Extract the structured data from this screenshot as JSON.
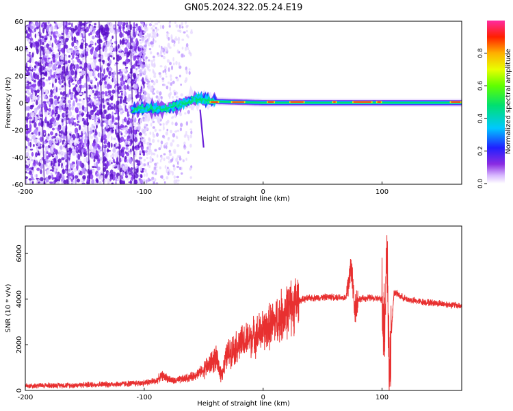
{
  "title": "GN05.2024.322.05.24.E19",
  "colors": {
    "snr_line": "#e83030",
    "spectrogram_noise": "#6a1fd8",
    "axis": "#000000",
    "background": "#ffffff"
  },
  "chart_data": [
    {
      "type": "heatmap",
      "title": "GN05.2024.322.05.24.E19",
      "xlabel": "Height of straight line (km)",
      "ylabel": "Frequency (Hz)",
      "xlim": [
        -200,
        167
      ],
      "ylim": [
        -60,
        60
      ],
      "x_ticks": [
        "-200",
        "-100",
        "0",
        "100"
      ],
      "y_ticks": [
        "-60",
        "-40",
        "-20",
        "0",
        "20",
        "40",
        "60"
      ],
      "colorbar": {
        "label": "Normalized spectral amplitude",
        "range": [
          0.0,
          1.0
        ],
        "ticks": [
          "0.0",
          "0.2",
          "0.4",
          "0.6",
          "0.8"
        ],
        "colormap": "rainbow (white → violet → blue → cyan → green → yellow → red → magenta)"
      },
      "features": {
        "noise_region_x": [
          -200,
          -100
        ],
        "noise_fade_x": [
          -100,
          -60
        ],
        "signal_band_x": [
          -110,
          167
        ],
        "signal_band_center_hz": [
          {
            "x": -110,
            "f": -5
          },
          {
            "x": -80,
            "f": -4
          },
          {
            "x": -55,
            "f": 3
          },
          {
            "x": -40,
            "f": 1
          },
          {
            "x": 0,
            "f": 0
          },
          {
            "x": 167,
            "f": 0
          }
        ],
        "streak": {
          "x": [
            -53,
            -50
          ],
          "f": [
            -5,
            -33
          ]
        }
      },
      "grid": false
    },
    {
      "type": "line",
      "xlabel": "Height of straight line (km)",
      "ylabel": "SNR (10 * v/v)",
      "xlim": [
        -200,
        167
      ],
      "ylim": [
        0,
        7200
      ],
      "x_ticks": [
        "-200",
        "-100",
        "0",
        "100"
      ],
      "y_ticks": [
        "0",
        "2000",
        "4000",
        "6000"
      ],
      "grid": false,
      "series": [
        {
          "x": [
            -200,
            -180,
            -160,
            -140,
            -120,
            -100,
            -90,
            -85,
            -75,
            -60,
            -50,
            -40,
            -35,
            -30,
            -25,
            -20,
            -10,
            0,
            10,
            20,
            30,
            40,
            50,
            60,
            70,
            74,
            77,
            80,
            90,
            100,
            102,
            104,
            106,
            110,
            120,
            130,
            140,
            150,
            167
          ],
          "values": [
            200,
            220,
            230,
            260,
            280,
            330,
            420,
            650,
            400,
            600,
            900,
            1400,
            700,
            1600,
            1800,
            2000,
            2300,
            2600,
            3000,
            3500,
            3950,
            4050,
            4080,
            4100,
            4050,
            5500,
            3600,
            4000,
            4050,
            4000,
            2800,
            6600,
            900,
            4300,
            4000,
            3900,
            3850,
            3800,
            3700
          ]
        }
      ]
    }
  ]
}
